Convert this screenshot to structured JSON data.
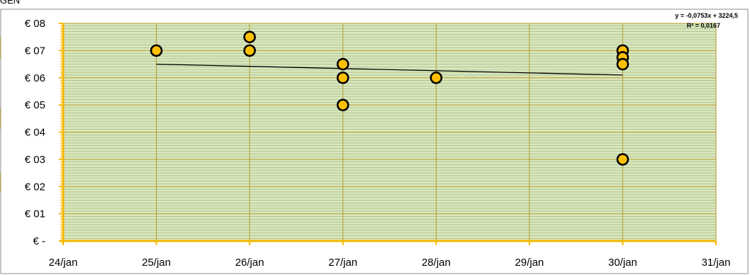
{
  "page": {
    "top_fragment": "GEN"
  },
  "chart_data": {
    "type": "scatter",
    "title": "",
    "xlabel": "",
    "ylabel": "",
    "x_ticks": [
      "24/jan",
      "25/jan",
      "26/jan",
      "27/jan",
      "28/jan",
      "29/jan",
      "30/jan",
      "31/jan"
    ],
    "y_ticks": [
      "€ -",
      "€ 01",
      "€ 02",
      "€ 03",
      "€ 04",
      "€ 05",
      "€ 06",
      "€ 07",
      "€ 08"
    ],
    "xlim": [
      24,
      31
    ],
    "ylim": [
      0,
      8
    ],
    "points": [
      {
        "x": 25,
        "y": 7.0
      },
      {
        "x": 26,
        "y": 7.5
      },
      {
        "x": 26,
        "y": 7.0
      },
      {
        "x": 27,
        "y": 6.5
      },
      {
        "x": 27,
        "y": 6.0
      },
      {
        "x": 27,
        "y": 5.0
      },
      {
        "x": 28,
        "y": 6.0
      },
      {
        "x": 30,
        "y": 7.0
      },
      {
        "x": 30,
        "y": 6.75
      },
      {
        "x": 30,
        "y": 6.5
      },
      {
        "x": 30,
        "y": 3.0
      }
    ],
    "trendline": {
      "x_start": 25,
      "y_start": 6.5,
      "x_end": 30,
      "y_end": 6.1,
      "equation": "y = -0,0753x + 3224,5",
      "r_squared": "R² = 0,0167"
    },
    "grid": true,
    "colors": {
      "plot_background": "#d9e7be",
      "major_gridline": "#b89a28",
      "minor_gridline": "#9bb07a",
      "axis": "#f5b800",
      "marker_fill": "#ffc000",
      "marker_stroke": "#000000",
      "trendline": "#000000"
    }
  }
}
